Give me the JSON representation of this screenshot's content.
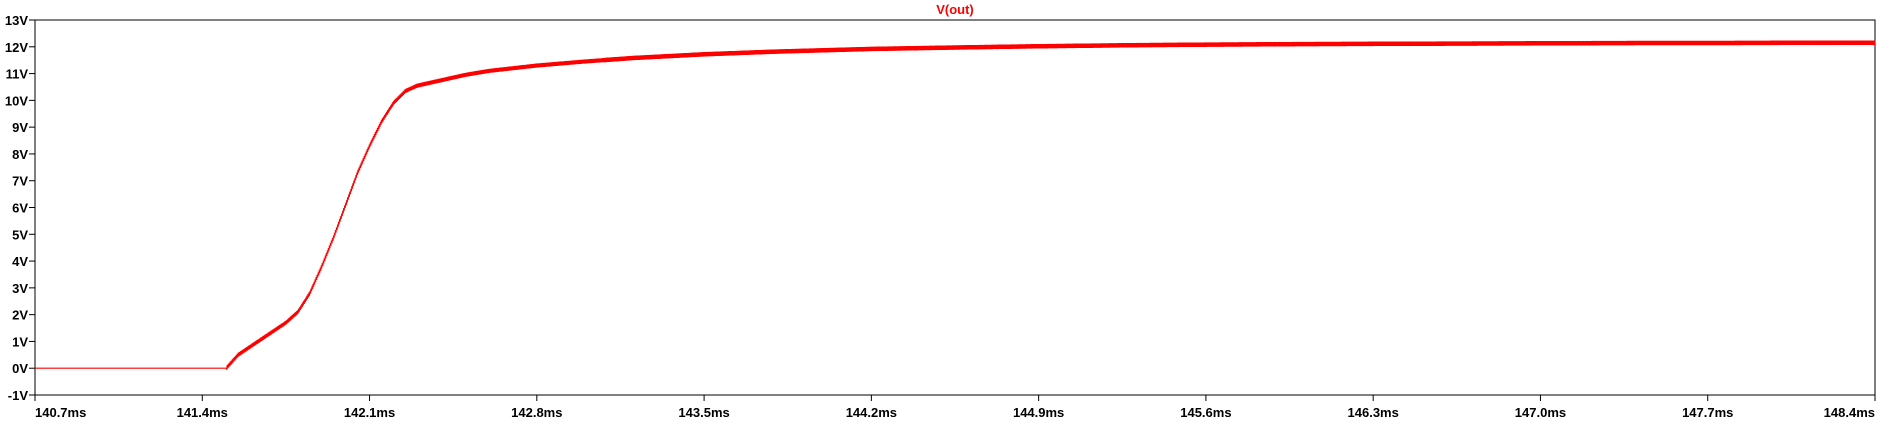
{
  "chart_data": {
    "type": "line",
    "title": "",
    "xlabel": "",
    "ylabel": "",
    "x_unit": "ms",
    "y_unit": "V",
    "xlim": [
      140.7,
      148.4
    ],
    "ylim": [
      -1,
      13
    ],
    "x_ticks": [
      "140.7ms",
      "141.4ms",
      "142.1ms",
      "142.8ms",
      "143.5ms",
      "144.2ms",
      "144.9ms",
      "145.6ms",
      "146.3ms",
      "147.0ms",
      "147.7ms",
      "148.4ms"
    ],
    "y_ticks": [
      "-1V",
      "0V",
      "1V",
      "2V",
      "3V",
      "4V",
      "5V",
      "6V",
      "7V",
      "8V",
      "9V",
      "10V",
      "11V",
      "12V",
      "13V"
    ],
    "grid": false,
    "legend": "top-center",
    "series": [
      {
        "name": "V(out)",
        "color": "#ff0000",
        "x": [
          140.7,
          141.5,
          141.52,
          141.55,
          141.6,
          141.65,
          141.7,
          141.75,
          141.8,
          141.85,
          141.9,
          141.95,
          142.0,
          142.05,
          142.1,
          142.15,
          142.2,
          142.25,
          142.3,
          142.4,
          142.5,
          142.6,
          142.8,
          143.0,
          143.2,
          143.5,
          143.8,
          144.2,
          144.6,
          144.9,
          145.3,
          145.6,
          146.0,
          146.3,
          146.7,
          147.0,
          147.4,
          147.7,
          148.1,
          148.4
        ],
        "y": [
          0,
          0,
          0.2,
          0.5,
          0.8,
          1.1,
          1.4,
          1.7,
          2.1,
          2.8,
          3.8,
          4.9,
          6.1,
          7.3,
          8.3,
          9.2,
          9.9,
          10.35,
          10.55,
          10.75,
          10.95,
          11.1,
          11.3,
          11.45,
          11.58,
          11.72,
          11.82,
          11.92,
          11.98,
          12.02,
          12.06,
          12.08,
          12.1,
          12.11,
          12.12,
          12.13,
          12.14,
          12.14,
          12.15,
          12.15
        ],
        "ripple_amplitude": 0.15
      }
    ]
  }
}
